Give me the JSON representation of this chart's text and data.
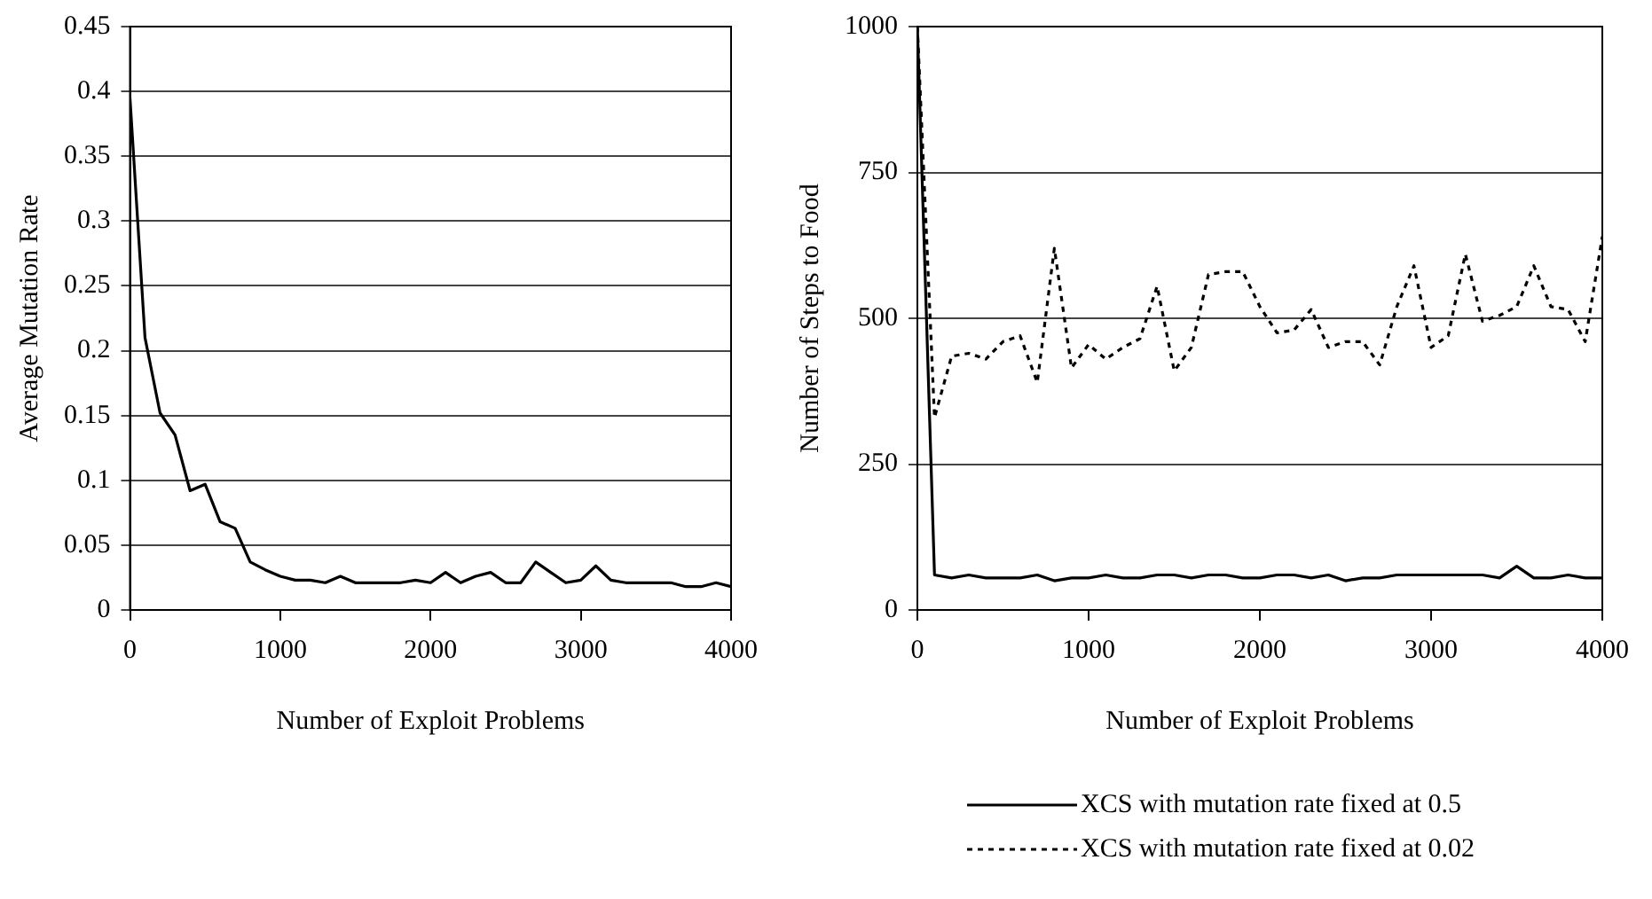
{
  "chart_data": [
    {
      "type": "line",
      "xlabel": "Number of Exploit Problems",
      "ylabel": "Average Mutation Rate",
      "x": [
        0,
        100,
        200,
        300,
        400,
        500,
        600,
        700,
        800,
        900,
        1000,
        1100,
        1200,
        1300,
        1400,
        1500,
        1600,
        1700,
        1800,
        1900,
        2000,
        2100,
        2200,
        2300,
        2400,
        2500,
        2600,
        2700,
        2800,
        2900,
        3000,
        3100,
        3200,
        3300,
        3400,
        3500,
        3600,
        3700,
        3800,
        3900,
        4000
      ],
      "series": [
        {
          "color": "#000000",
          "line_style": "solid",
          "values": [
            0.395,
            0.21,
            0.152,
            0.135,
            0.092,
            0.097,
            0.068,
            0.063,
            0.037,
            0.031,
            0.026,
            0.023,
            0.023,
            0.021,
            0.026,
            0.021,
            0.021,
            0.021,
            0.021,
            0.023,
            0.021,
            0.029,
            0.021,
            0.026,
            0.029,
            0.021,
            0.021,
            0.037,
            0.029,
            0.021,
            0.023,
            0.034,
            0.023,
            0.021,
            0.021,
            0.021,
            0.021,
            0.018,
            0.018,
            0.021,
            0.018
          ]
        }
      ],
      "xlim": [
        0,
        4000
      ],
      "xticks": [
        0,
        1000,
        2000,
        3000,
        4000
      ],
      "ylim": [
        0,
        0.45
      ],
      "yticks": [
        0,
        0.05,
        0.1,
        0.15,
        0.2,
        0.25,
        0.3,
        0.35,
        0.4,
        0.45
      ],
      "grid": "y",
      "marker": "none"
    },
    {
      "type": "line",
      "xlabel": "Number of Exploit Problems",
      "ylabel": "Number of Steps to Food",
      "x": [
        0,
        100,
        200,
        300,
        400,
        500,
        600,
        700,
        800,
        900,
        1000,
        1100,
        1200,
        1300,
        1400,
        1500,
        1600,
        1700,
        1800,
        1900,
        2000,
        2100,
        2200,
        2300,
        2400,
        2500,
        2600,
        2700,
        2800,
        2900,
        3000,
        3100,
        3200,
        3300,
        3400,
        3500,
        3600,
        3700,
        3800,
        3900,
        4000
      ],
      "series": [
        {
          "name": "XCS with mutation rate fixed at 0.5",
          "color": "#000000",
          "line_style": "solid",
          "values": [
            1000,
            60,
            55,
            60,
            55,
            55,
            55,
            60,
            50,
            55,
            55,
            60,
            55,
            55,
            60,
            60,
            55,
            60,
            60,
            55,
            55,
            60,
            60,
            55,
            60,
            50,
            55,
            55,
            60,
            60,
            60,
            60,
            60,
            60,
            55,
            75,
            55,
            55,
            60,
            55,
            55
          ]
        },
        {
          "name": "XCS with mutation rate fixed at 0.02",
          "color": "#000000",
          "line_style": "dotted",
          "values": [
            1000,
            330,
            435,
            440,
            430,
            460,
            470,
            390,
            620,
            415,
            455,
            430,
            450,
            465,
            555,
            410,
            450,
            575,
            580,
            580,
            520,
            475,
            480,
            515,
            450,
            460,
            460,
            420,
            520,
            590,
            450,
            470,
            610,
            495,
            505,
            520,
            590,
            520,
            515,
            460,
            640
          ]
        }
      ],
      "xlim": [
        0,
        4000
      ],
      "xticks": [
        0,
        1000,
        2000,
        3000,
        4000
      ],
      "ylim": [
        0,
        1000
      ],
      "yticks": [
        0,
        250,
        500,
        750,
        1000
      ],
      "grid": "y",
      "legend": "bottom",
      "marker": "none"
    }
  ]
}
